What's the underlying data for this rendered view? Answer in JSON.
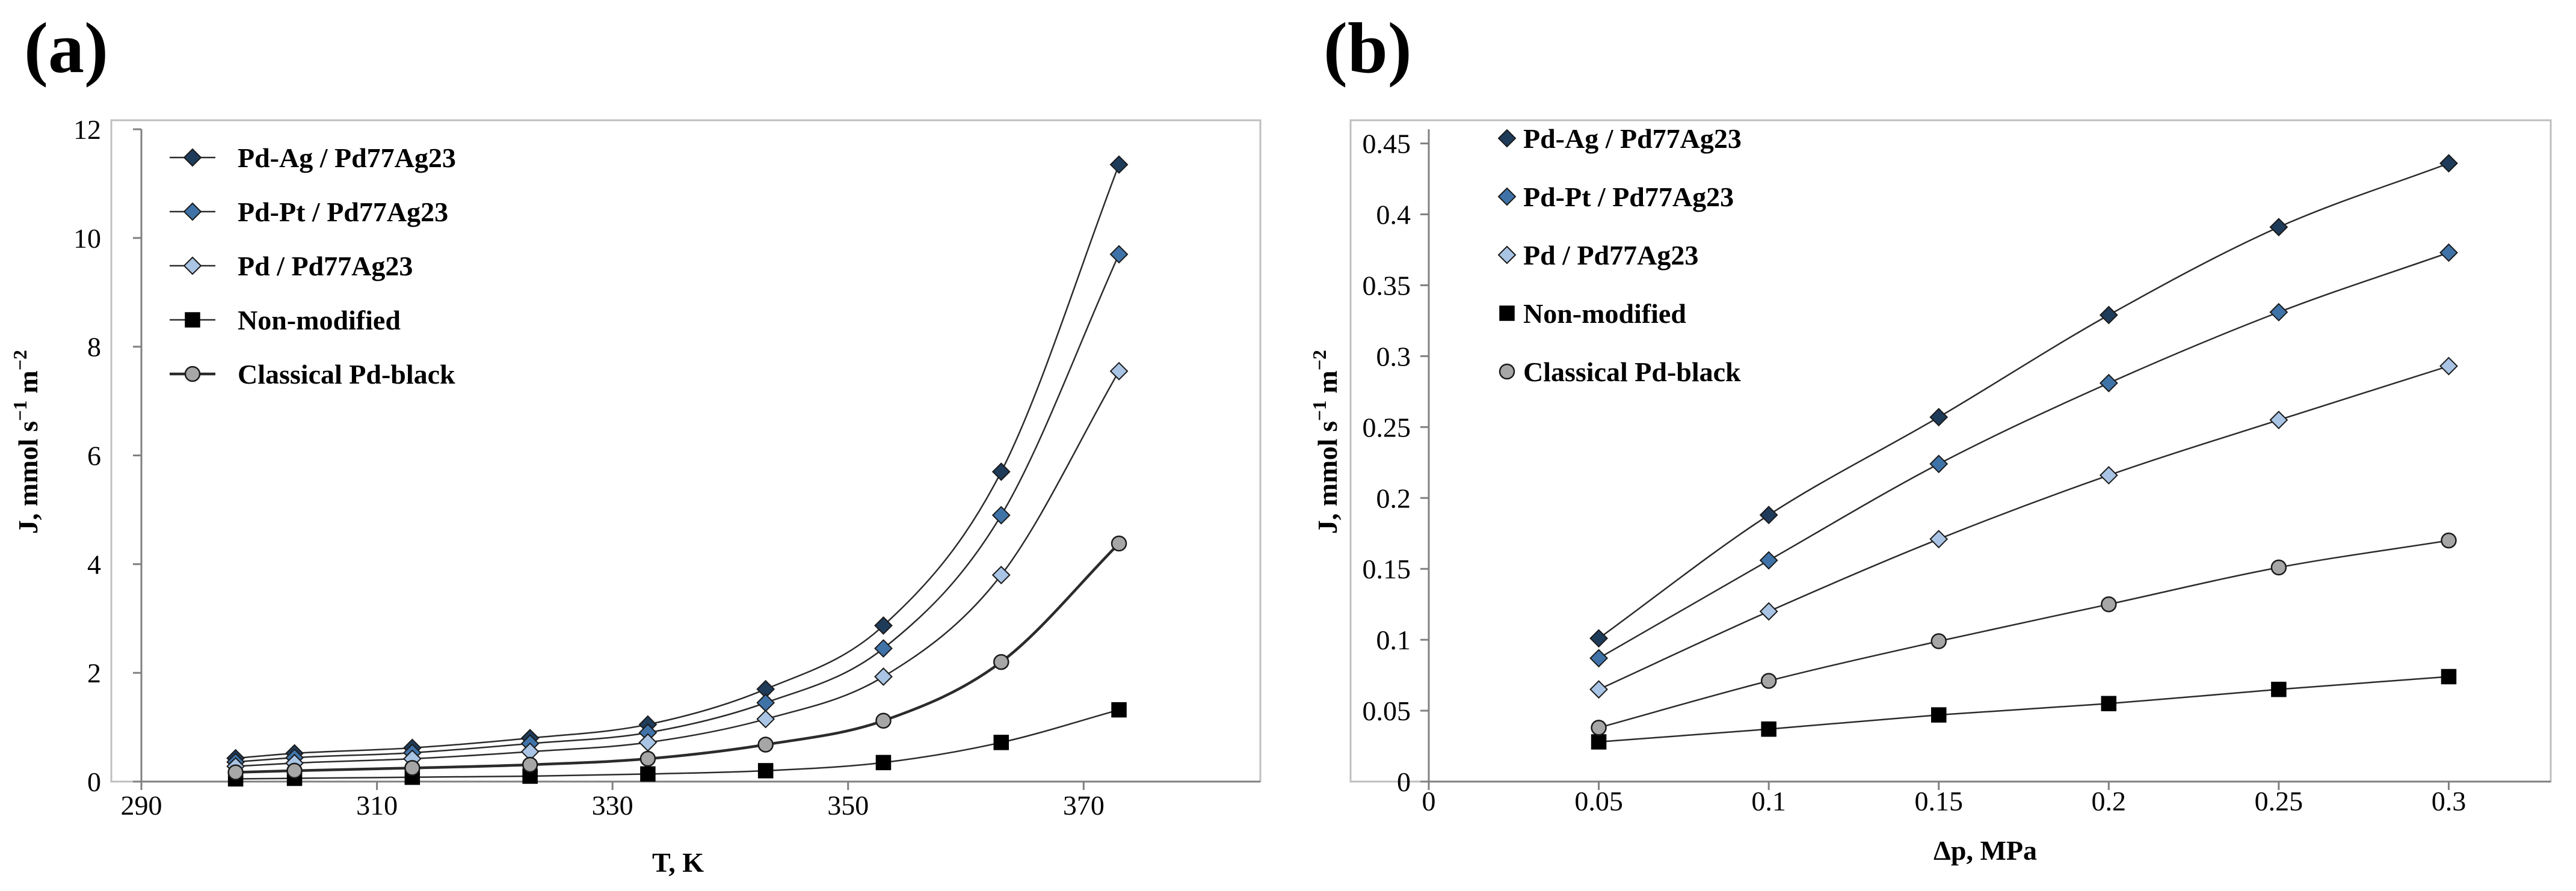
{
  "figure": {
    "panels": [
      "(a)",
      "(b)"
    ]
  },
  "chart_data": [
    {
      "type": "scatter",
      "panel": "(a)",
      "xlabel": "T, K",
      "ylabel": {
        "base": "J, mmol s",
        "sup1": "−1",
        "mid": " m",
        "sup2": "−2"
      },
      "xlim": [
        290,
        385
      ],
      "ylim": [
        0,
        12
      ],
      "xticks": [
        290,
        310,
        330,
        350,
        370
      ],
      "yticks": [
        0,
        2,
        4,
        6,
        8,
        10,
        12
      ],
      "ytick_labels": [
        "0",
        "2",
        "4",
        "6",
        "8",
        "10",
        "12"
      ],
      "grid": false,
      "legend_position": "top-left",
      "x": [
        298,
        303,
        313,
        323,
        333,
        343,
        353,
        363,
        373
      ],
      "series": [
        {
          "name": "Pd-Ag / Pd77Ag23",
          "marker": "diamond",
          "color": "#1f3b5a",
          "values": [
            0.43,
            0.52,
            0.62,
            0.8,
            1.05,
            1.7,
            2.87,
            5.7,
            11.35
          ]
        },
        {
          "name": "Pd-Pt / Pd77Ag23",
          "marker": "diamond",
          "color": "#3f73a8",
          "values": [
            0.36,
            0.44,
            0.53,
            0.7,
            0.9,
            1.45,
            2.45,
            4.9,
            9.7
          ]
        },
        {
          "name": "Pd / Pd77Ag23",
          "marker": "diamond",
          "color": "#a9c4e4",
          "values": [
            0.28,
            0.34,
            0.42,
            0.55,
            0.72,
            1.15,
            1.93,
            3.8,
            7.55
          ]
        },
        {
          "name": "Non-modified",
          "marker": "square",
          "color": "#000000",
          "values": [
            0.05,
            0.06,
            0.08,
            0.1,
            0.14,
            0.2,
            0.35,
            0.72,
            1.32
          ]
        },
        {
          "name": "Classical Pd-black",
          "marker": "circle",
          "color": "#a6a6a6",
          "values": [
            0.17,
            0.2,
            0.25,
            0.31,
            0.42,
            0.68,
            1.12,
            2.2,
            4.38
          ]
        }
      ]
    },
    {
      "type": "scatter",
      "panel": "(b)",
      "xlabel": "Δp, MPa",
      "ylabel": {
        "base": "J, mmol s",
        "sup1": "−1",
        "mid": " m",
        "sup2": "−2"
      },
      "xlim": [
        0,
        0.33
      ],
      "ylim": [
        0,
        0.46
      ],
      "xticks": [
        0,
        0.05,
        0.1,
        0.15,
        0.2,
        0.25,
        0.3
      ],
      "xtick_labels": [
        "0",
        "0.05",
        "0.1",
        "0.15",
        "0.2",
        "0.25",
        "0.3"
      ],
      "yticks": [
        0,
        0.05,
        0.1,
        0.15,
        0.2,
        0.25,
        0.3,
        0.35,
        0.4,
        0.45
      ],
      "ytick_labels": [
        "0",
        "0.05",
        "0.1",
        "0.15",
        "0.2",
        "0.25",
        "0.3",
        "0.35",
        "0.4",
        "0.45"
      ],
      "grid": false,
      "legend_position": "top-left",
      "x": [
        0.05,
        0.1,
        0.15,
        0.2,
        0.25,
        0.3
      ],
      "series": [
        {
          "name": "Pd-Ag / Pd77Ag23",
          "marker": "diamond",
          "color": "#1f3b5a",
          "values": [
            0.101,
            0.188,
            0.257,
            0.329,
            0.391,
            0.436
          ]
        },
        {
          "name": "Pd-Pt / Pd77Ag23",
          "marker": "diamond",
          "color": "#3f73a8",
          "values": [
            0.087,
            0.156,
            0.224,
            0.281,
            0.331,
            0.373
          ]
        },
        {
          "name": "Pd / Pd77Ag23",
          "marker": "diamond",
          "color": "#a9c4e4",
          "values": [
            0.065,
            0.12,
            0.171,
            0.216,
            0.255,
            0.293
          ]
        },
        {
          "name": "Non-modified",
          "marker": "square",
          "color": "#000000",
          "values": [
            0.028,
            0.037,
            0.047,
            0.055,
            0.065,
            0.074
          ]
        },
        {
          "name": "Classical Pd-black",
          "marker": "circle",
          "color": "#a6a6a6",
          "values": [
            0.038,
            0.071,
            0.099,
            0.125,
            0.151,
            0.17
          ]
        }
      ]
    }
  ]
}
